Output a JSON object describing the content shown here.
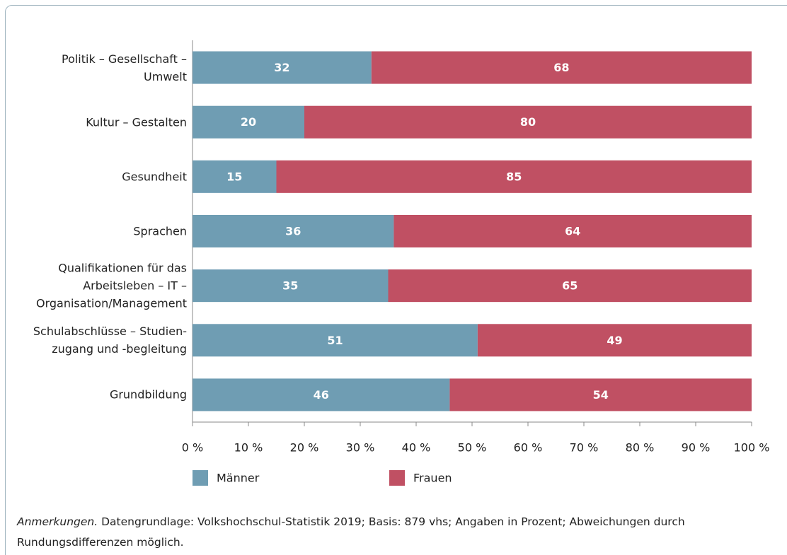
{
  "chart_data": {
    "type": "bar",
    "orientation": "horizontal",
    "stacked": true,
    "categories": [
      "Politik – Gesellschaft –\nUmwelt",
      "Kultur – Gestalten",
      "Gesundheit",
      "Sprachen",
      "Qualifikationen für das\nArbeitsleben – IT –\nOrganisation/Management",
      "Schulabschlüsse – Studien-\nzugang und -begleitung",
      "Grundbildung"
    ],
    "series": [
      {
        "name": "Männer",
        "color": "#6f9db3",
        "values": [
          32,
          20,
          15,
          36,
          35,
          51,
          46
        ]
      },
      {
        "name": "Frauen",
        "color": "#c05063",
        "values": [
          68,
          80,
          85,
          64,
          65,
          49,
          54
        ]
      }
    ],
    "xlim": [
      0,
      100
    ],
    "xticks": [
      {
        "value": 0,
        "label": "0 %"
      },
      {
        "value": 10,
        "label": "10 %"
      },
      {
        "value": 20,
        "label": "20 %"
      },
      {
        "value": 30,
        "label": "30 %"
      },
      {
        "value": 40,
        "label": "40 %"
      },
      {
        "value": 50,
        "label": "50 %"
      },
      {
        "value": 60,
        "label": "60 %"
      },
      {
        "value": 70,
        "label": "70 %"
      },
      {
        "value": 80,
        "label": "80 %"
      },
      {
        "value": 90,
        "label": "90 %"
      },
      {
        "value": 100,
        "label": "100 %"
      }
    ],
    "note_label": "Anmerkungen.",
    "note": "Datengrundlage: Volkshochschul-Statistik 2019; Basis: 879 vhs; Angaben in Prozent; Abweichungen durch Rundungsdifferenzen möglich."
  }
}
